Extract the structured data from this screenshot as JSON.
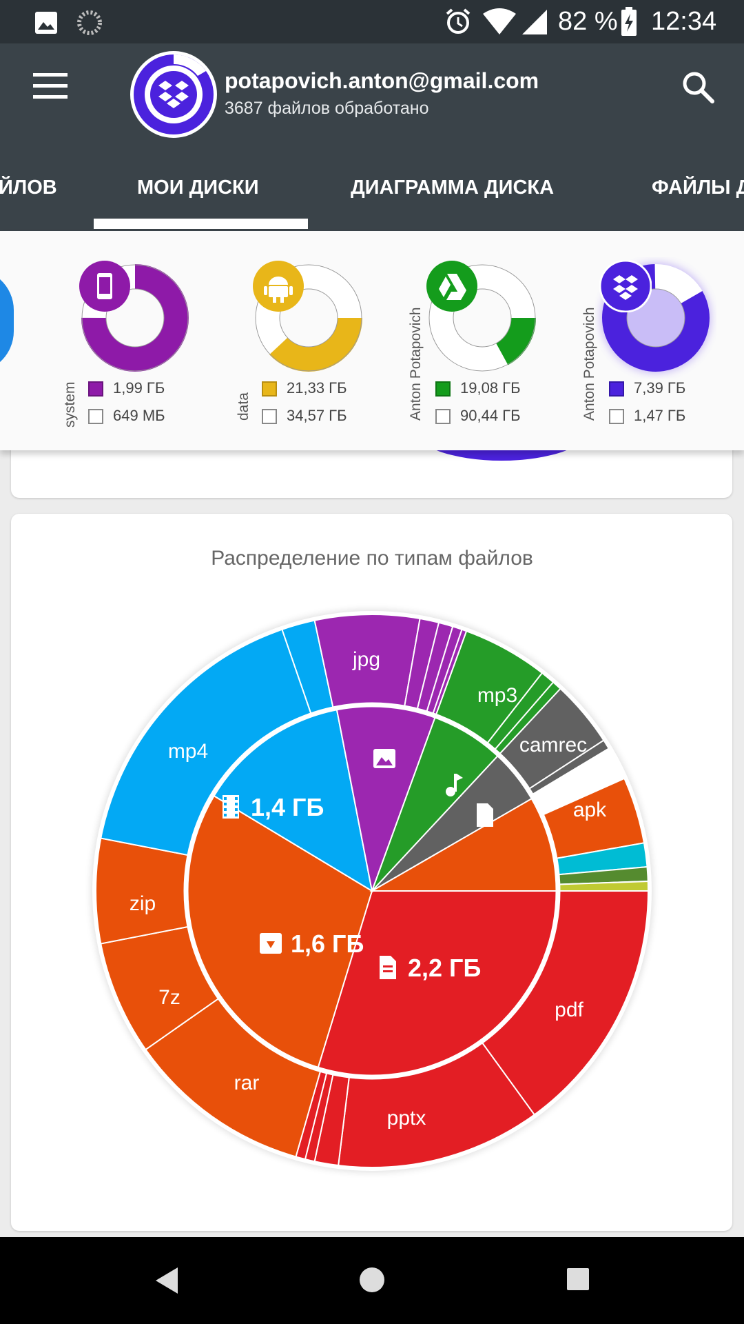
{
  "status_bar": {
    "battery_percent": "82 %",
    "time": "12:34",
    "icons": [
      "image-icon",
      "sync-icon",
      "alarm-icon",
      "wifi-icon",
      "signal-icon",
      "battery-charging-icon"
    ]
  },
  "header": {
    "email": "potapovich.anton@gmail.com",
    "files_processed": "3687 файлов обработано",
    "menu_icon": "hamburger-menu-icon",
    "search_icon": "search-icon",
    "avatar_icon": "dropbox-icon"
  },
  "tabs": {
    "items": [
      {
        "label": "ЙЛОВ"
      },
      {
        "label": "МОИ ДИСКИ",
        "selected": true
      },
      {
        "label": "ДИАГРАММА ДИСКА"
      },
      {
        "label": "ФАЙЛЫ Д"
      }
    ]
  },
  "disks": [
    {
      "name": "system",
      "icon": "phone-icon",
      "color": "#8e1aa8",
      "used": "1,99 ГБ",
      "free": "649 МБ",
      "used_fraction": 0.75
    },
    {
      "name": "data",
      "icon": "android-icon",
      "color": "#e8b619",
      "used": "21,33 ГБ",
      "free": "34,57 ГБ",
      "used_fraction": 0.38
    },
    {
      "name": "Anton Potapovich",
      "icon": "google-drive-icon",
      "color": "#149c1c",
      "used": "19,08 ГБ",
      "free": "90,44 ГБ",
      "used_fraction": 0.17
    },
    {
      "name": "Anton Potapovich",
      "icon": "dropbox-icon",
      "color": "#4b22dd",
      "used": "7,39 ГБ",
      "free": "1,47 ГБ",
      "used_fraction": 0.83
    }
  ],
  "chart_card": {
    "title": "Распределение по типам файлов"
  },
  "chart_data": {
    "type": "pie",
    "title": "Распределение по типам файлов",
    "inner_ring": [
      {
        "category": "documents",
        "icon": "document-icon",
        "label": "2,2 ГБ",
        "color": "#e31e24"
      },
      {
        "category": "archives",
        "icon": "archive-icon",
        "label": "1,6 ГБ",
        "color": "#e8500a"
      },
      {
        "category": "video",
        "icon": "film-icon",
        "label": "1,4 ГБ",
        "color": "#03a9f4"
      },
      {
        "category": "images",
        "icon": "image-icon",
        "label": "",
        "color": "#9c27b0"
      },
      {
        "category": "audio",
        "icon": "music-icon",
        "label": "",
        "color": "#259c28"
      },
      {
        "category": "other",
        "icon": "file-icon",
        "label": "",
        "color": "#616161"
      }
    ],
    "outer_ring_labels": [
      "jpg",
      "mp3",
      "camrec",
      "apk",
      "pdf",
      "pptx",
      "rar",
      "7z",
      "zip",
      "mp4"
    ]
  },
  "nav_bar": {
    "icons": [
      "back-icon",
      "home-icon",
      "recents-icon"
    ]
  }
}
